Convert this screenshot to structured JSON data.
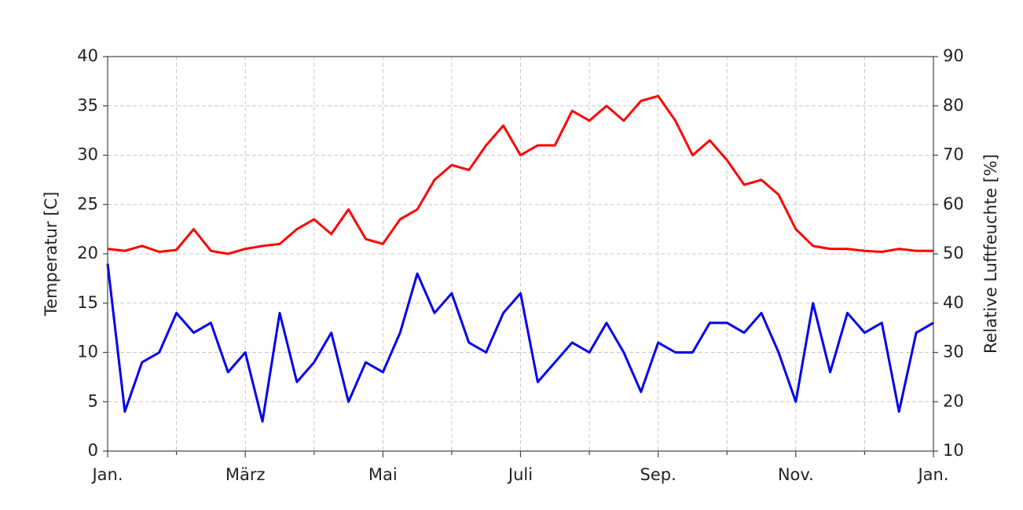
{
  "chart_data": {
    "type": "line",
    "y_label": "Temperatur [C]",
    "y2_label": "Relative Luftfeuchte [%]",
    "x": [
      0,
      0.25,
      0.5,
      0.75,
      1,
      1.25,
      1.5,
      1.75,
      2,
      2.25,
      2.5,
      2.75,
      3,
      3.25,
      3.5,
      3.75,
      4,
      4.25,
      4.5,
      4.75,
      5,
      5.25,
      5.5,
      5.75,
      6,
      6.25,
      6.5,
      6.75,
      7,
      7.25,
      7.5,
      7.75,
      8,
      8.25,
      8.5,
      8.75,
      9,
      9.25,
      9.5,
      9.75,
      10,
      10.25,
      10.5,
      10.75,
      11,
      11.25,
      11.5,
      11.75,
      12
    ],
    "series": [
      {
        "name": "Temperatur",
        "color": "#ff0000",
        "axis": "y",
        "values": [
          20.5,
          20.3,
          20.8,
          20.2,
          20.4,
          22.5,
          20.3,
          20,
          20.5,
          20.8,
          21,
          22.5,
          23.5,
          22,
          24.5,
          21.5,
          21,
          23.5,
          24.5,
          27.5,
          29,
          28.5,
          31,
          33,
          30,
          31,
          31,
          34.5,
          33.5,
          35,
          33.5,
          35.5,
          36,
          33.5,
          30,
          31.5,
          29.5,
          27,
          27.5,
          26,
          22.5,
          20.8,
          20.5,
          20.5,
          20.3,
          20.2,
          20.5,
          20.3,
          20.3
        ]
      },
      {
        "name": "Relative Luftfeuchte",
        "color": "#0000ee",
        "axis": "y2",
        "values": [
          48,
          18,
          28,
          30,
          38,
          34,
          36,
          26,
          30,
          16,
          38,
          24,
          28,
          34,
          20,
          28,
          26,
          34,
          46,
          38,
          42,
          32,
          30,
          38,
          42,
          24,
          28,
          32,
          30,
          36,
          30,
          22,
          32,
          30,
          30,
          36,
          36,
          34,
          38,
          30,
          20,
          40,
          26,
          38,
          34,
          36,
          18,
          34,
          36
        ]
      }
    ],
    "xlim": [
      0,
      12
    ],
    "xticks": [
      {
        "value": 0,
        "label": "Jan."
      },
      {
        "value": 2,
        "label": "März"
      },
      {
        "value": 4,
        "label": "Mai"
      },
      {
        "value": 6,
        "label": "Juli"
      },
      {
        "value": 8,
        "label": "Sep."
      },
      {
        "value": 10,
        "label": "Nov."
      },
      {
        "value": 12,
        "label": "Jan."
      }
    ],
    "xminorticks": [
      1,
      3,
      5,
      7,
      9,
      11
    ],
    "ylim": [
      0,
      40
    ],
    "yticks": [
      0,
      5,
      10,
      15,
      20,
      25,
      30,
      35,
      40
    ],
    "y2lim": [
      10,
      90
    ],
    "y2ticks": [
      10,
      20,
      30,
      40,
      50,
      60,
      70,
      80,
      90
    ],
    "grid": true
  }
}
